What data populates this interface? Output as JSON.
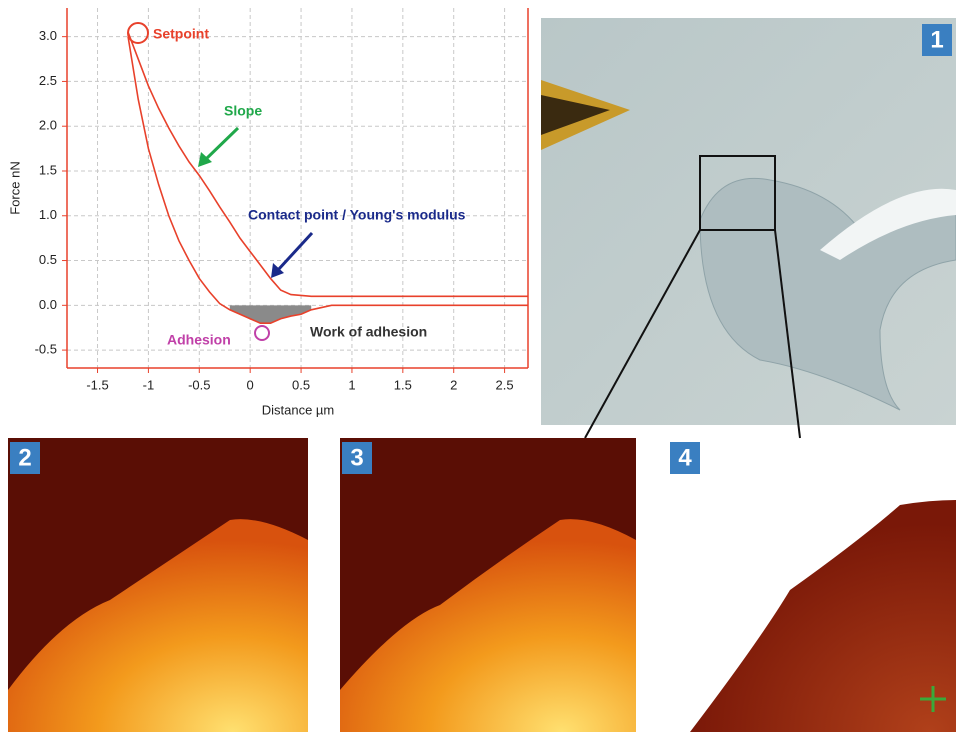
{
  "chart_data": {
    "type": "line",
    "xlabel": "Distance µm",
    "ylabel": "Force nN",
    "annotations": [
      "Setpoint",
      "Slope",
      "Contact point / Young's modulus",
      "Adhesion",
      "Work of adhesion"
    ],
    "x": [
      -1.2,
      -1.1,
      -1.0,
      -0.9,
      -0.8,
      -0.7,
      -0.6,
      -0.5,
      -0.4,
      -0.3,
      -0.2,
      -0.1,
      0,
      0.1,
      0.2,
      0.3,
      0.4,
      0.5,
      0.6,
      0.8,
      1.0,
      1.5,
      2.0,
      2.5,
      2.73
    ],
    "series": [
      {
        "color": "#e8412b",
        "values": [
          3.05,
          2.75,
          2.45,
          2.2,
          1.98,
          1.78,
          1.6,
          1.45,
          1.28,
          1.1,
          0.93,
          0.75,
          0.6,
          0.45,
          0.3,
          0.17,
          0.12,
          0.11,
          0.1,
          0.1,
          0.1,
          0.1,
          0.1,
          0.1,
          0.1
        ]
      },
      {
        "color": "#e8412b",
        "values": [
          3.0,
          2.3,
          1.75,
          1.35,
          1.0,
          0.72,
          0.5,
          0.3,
          0.15,
          0.02,
          -0.05,
          -0.1,
          -0.15,
          -0.2,
          -0.2,
          -0.15,
          -0.12,
          -0.1,
          -0.05,
          0.0,
          0.0,
          0.0,
          0.0,
          0.0,
          0.0
        ]
      }
    ],
    "xlim": [
      -1.8,
      2.73
    ],
    "xticks": [
      -1.5,
      -1,
      -0.5,
      0,
      0.5,
      1,
      1.5,
      2,
      2.5
    ],
    "ylim": [
      -0.7,
      3.32
    ],
    "yticks": [
      -0.5,
      {
        "value": 0,
        "label": "0.0"
      },
      0.5,
      {
        "value": 1,
        "label": "1.0"
      },
      1.5,
      {
        "value": 2,
        "label": "2.0"
      },
      2.5,
      {
        "value": 3,
        "label": "3.0"
      }
    ],
    "grid": true,
    "axis_color": "#e8412b",
    "fill_color": "#8a8a8a"
  },
  "panel_labels": [
    "1",
    "2",
    "3",
    "4"
  ]
}
